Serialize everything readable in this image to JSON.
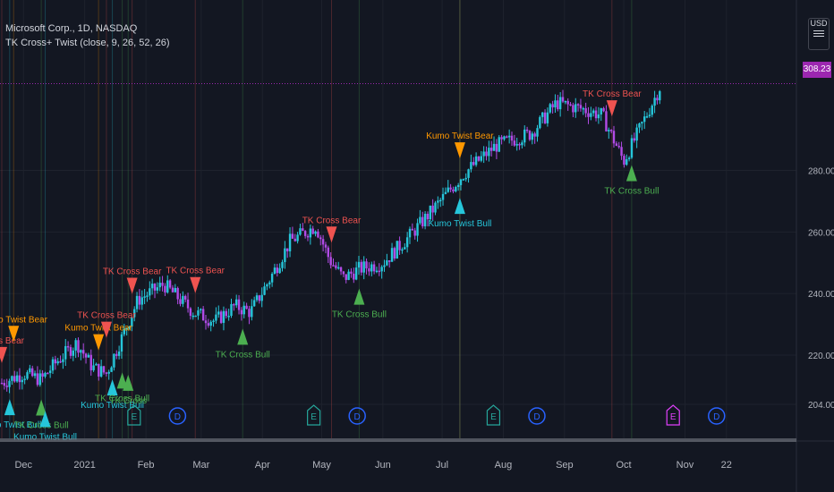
{
  "header": {
    "symbol": "Microsoft Corp., 1D, NASDAQ",
    "indicator": "TK Cross+ Twist (close, 9, 26, 52, 26)"
  },
  "price_scale": {
    "currency": "USD",
    "last_price": "308.23",
    "last_price_color": "#9c27b0"
  },
  "colors": {
    "background": "#131722",
    "bull_candle": "#26c6da",
    "bear_candle": "#b14be6",
    "tk_bear": "#ef5350",
    "tk_bull": "#4caf50",
    "kumo_bear": "#ff9800",
    "kumo_bull": "#26c6da",
    "earnings": "#26a69a",
    "dividend": "#2962ff"
  },
  "icons": [
    "currency-menu-icon",
    "earnings-event-icon",
    "dividend-event-icon"
  ],
  "chart_data": {
    "type": "candlestick",
    "y_ticks": [
      204,
      220,
      240,
      260,
      280
    ],
    "x_ticks": [
      "Dec",
      "2021",
      "Feb",
      "Mar",
      "Apr",
      "May",
      "Jun",
      "Jul",
      "Aug",
      "Sep",
      "Oct",
      "Nov",
      "22"
    ],
    "price_path": [
      {
        "date": "2020-11-20",
        "value": 211
      },
      {
        "date": "2020-12-01",
        "value": 214
      },
      {
        "date": "2020-12-10",
        "value": 212
      },
      {
        "date": "2020-12-18",
        "value": 218
      },
      {
        "date": "2020-12-28",
        "value": 224
      },
      {
        "date": "2021-01-05",
        "value": 216
      },
      {
        "date": "2021-01-12",
        "value": 214
      },
      {
        "date": "2021-01-20",
        "value": 226
      },
      {
        "date": "2021-01-28",
        "value": 238
      },
      {
        "date": "2021-02-10",
        "value": 243
      },
      {
        "date": "2021-02-25",
        "value": 234
      },
      {
        "date": "2021-03-08",
        "value": 231
      },
      {
        "date": "2021-03-18",
        "value": 236
      },
      {
        "date": "2021-03-26",
        "value": 234
      },
      {
        "date": "2021-04-05",
        "value": 245
      },
      {
        "date": "2021-04-15",
        "value": 257
      },
      {
        "date": "2021-04-28",
        "value": 262
      },
      {
        "date": "2021-05-05",
        "value": 251
      },
      {
        "date": "2021-05-12",
        "value": 245
      },
      {
        "date": "2021-05-20",
        "value": 248
      },
      {
        "date": "2021-06-01",
        "value": 250
      },
      {
        "date": "2021-06-15",
        "value": 259
      },
      {
        "date": "2021-06-30",
        "value": 270
      },
      {
        "date": "2021-07-12",
        "value": 279
      },
      {
        "date": "2021-07-28",
        "value": 288
      },
      {
        "date": "2021-08-15",
        "value": 292
      },
      {
        "date": "2021-08-28",
        "value": 302
      },
      {
        "date": "2021-09-10",
        "value": 300
      },
      {
        "date": "2021-09-20",
        "value": 298
      },
      {
        "date": "2021-10-01",
        "value": 283
      },
      {
        "date": "2021-10-08",
        "value": 292
      },
      {
        "date": "2021-10-20",
        "value": 308
      }
    ],
    "signals": [
      {
        "date": "2020-11-20",
        "kind": "tk_bear",
        "label": "Cross Bear"
      },
      {
        "date": "2020-11-26",
        "kind": "kumo_bear",
        "label": "Kumo Twist Bear"
      },
      {
        "date": "2020-11-24",
        "kind": "kumo_bull",
        "label": "Kumo Twist Bull"
      },
      {
        "date": "2020-12-10",
        "kind": "tk_bull",
        "label": "TK Cross Bull"
      },
      {
        "date": "2020-12-12",
        "kind": "kumo_bull",
        "label": "Kumo Twist Bull"
      },
      {
        "date": "2021-01-08",
        "kind": "kumo_bear",
        "label": "Kumo Twist Bear"
      },
      {
        "date": "2021-01-12",
        "kind": "tk_bear",
        "label": "TK Cross Bear"
      },
      {
        "date": "2021-01-15",
        "kind": "kumo_bull",
        "label": "Kumo Twist Bull"
      },
      {
        "date": "2021-01-20",
        "kind": "tk_bull",
        "label": "TK Cross Bull"
      },
      {
        "date": "2021-01-23",
        "kind": "tk_bull",
        "label": "TK Cross"
      },
      {
        "date": "2021-01-25",
        "kind": "tk_bear",
        "label": "TK Cross Bear"
      },
      {
        "date": "2021-02-26",
        "kind": "tk_bear",
        "label": "TK Cross Bear"
      },
      {
        "date": "2021-03-22",
        "kind": "tk_bull",
        "label": "TK Cross Bull"
      },
      {
        "date": "2021-05-06",
        "kind": "tk_bear",
        "label": "TK Cross Bear"
      },
      {
        "date": "2021-05-20",
        "kind": "tk_bull",
        "label": "TK Cross Bull"
      },
      {
        "date": "2021-07-10",
        "kind": "kumo_bull",
        "label": "Kumo Twist Bull"
      },
      {
        "date": "2021-07-10",
        "kind": "kumo_bear",
        "label": "Kumo Twist Bear"
      },
      {
        "date": "2021-09-25",
        "kind": "tk_bear",
        "label": "TK Cross Bear"
      },
      {
        "date": "2021-10-05",
        "kind": "tk_bull",
        "label": "TK Cross Bull"
      }
    ],
    "events": [
      {
        "date": "2021-01-26",
        "type": "E"
      },
      {
        "date": "2021-02-17",
        "type": "D"
      },
      {
        "date": "2021-04-27",
        "type": "E"
      },
      {
        "date": "2021-05-19",
        "type": "D"
      },
      {
        "date": "2021-07-27",
        "type": "E"
      },
      {
        "date": "2021-08-18",
        "type": "D"
      },
      {
        "date": "2021-10-26",
        "type": "E"
      },
      {
        "date": "2021-11-17",
        "type": "D"
      }
    ]
  }
}
